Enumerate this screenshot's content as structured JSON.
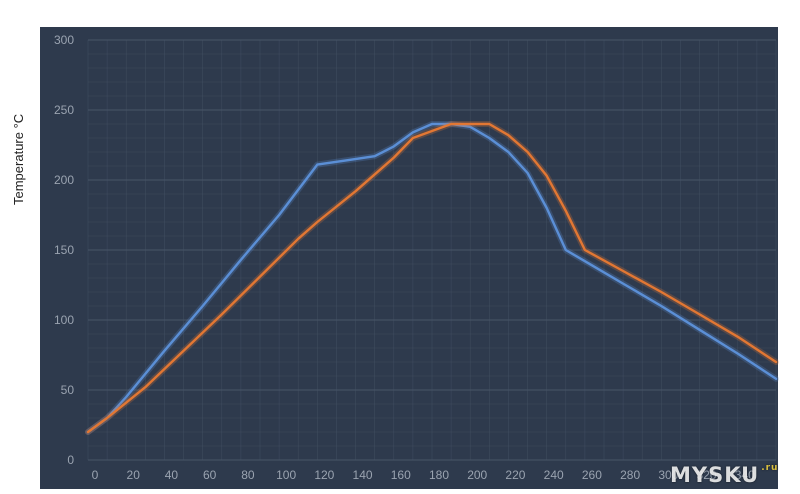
{
  "chart_data": {
    "type": "line",
    "ylabel": "Temperature °C",
    "xlabel": "",
    "xlim": [
      0,
      360
    ],
    "ylim": [
      0,
      300
    ],
    "x_ticks": [
      0,
      20,
      40,
      60,
      80,
      100,
      120,
      140,
      160,
      180,
      200,
      220,
      240,
      260,
      280,
      300,
      320,
      340
    ],
    "x_tick_labels": [
      "0",
      "20",
      "40",
      "60",
      "80",
      "100",
      "120",
      "140",
      "160",
      "180",
      "200",
      "220",
      "240",
      "260",
      "280",
      "300",
      "320",
      "340"
    ],
    "y_ticks": [
      0,
      50,
      100,
      150,
      200,
      250,
      300
    ],
    "y_tick_labels": [
      "0",
      "50",
      "100",
      "150",
      "200",
      "250",
      "300"
    ],
    "grid": true,
    "background_color": "#2e3a4d",
    "grid_color": "#4a5669",
    "tick_label_color": "#9aa3b0",
    "series": [
      {
        "color": "#5b8fd6",
        "points": [
          [
            0,
            20
          ],
          [
            10,
            30
          ],
          [
            20,
            45
          ],
          [
            40,
            78
          ],
          [
            60,
            110
          ],
          [
            80,
            143
          ],
          [
            100,
            175
          ],
          [
            120,
            211
          ],
          [
            135,
            214
          ],
          [
            150,
            217
          ],
          [
            160,
            224
          ],
          [
            170,
            234
          ],
          [
            180,
            240
          ],
          [
            190,
            240
          ],
          [
            200,
            238
          ],
          [
            210,
            230
          ],
          [
            220,
            220
          ],
          [
            230,
            205
          ],
          [
            240,
            180
          ],
          [
            250,
            150
          ],
          [
            260,
            142
          ],
          [
            280,
            126
          ],
          [
            300,
            110
          ],
          [
            320,
            93
          ],
          [
            340,
            76
          ],
          [
            360,
            58
          ]
        ]
      },
      {
        "color": "#e27733",
        "points": [
          [
            0,
            20
          ],
          [
            10,
            30
          ],
          [
            30,
            52
          ],
          [
            50,
            78
          ],
          [
            70,
            104
          ],
          [
            90,
            131
          ],
          [
            110,
            158
          ],
          [
            120,
            170
          ],
          [
            140,
            192
          ],
          [
            160,
            216
          ],
          [
            170,
            230
          ],
          [
            180,
            235
          ],
          [
            190,
            240
          ],
          [
            200,
            240
          ],
          [
            210,
            240
          ],
          [
            220,
            232
          ],
          [
            230,
            220
          ],
          [
            240,
            203
          ],
          [
            250,
            178
          ],
          [
            260,
            150
          ],
          [
            280,
            135
          ],
          [
            300,
            120
          ],
          [
            320,
            104
          ],
          [
            340,
            88
          ],
          [
            360,
            70
          ]
        ]
      }
    ]
  },
  "watermark": {
    "text": "MYSKU",
    "suffix": ".ru"
  }
}
